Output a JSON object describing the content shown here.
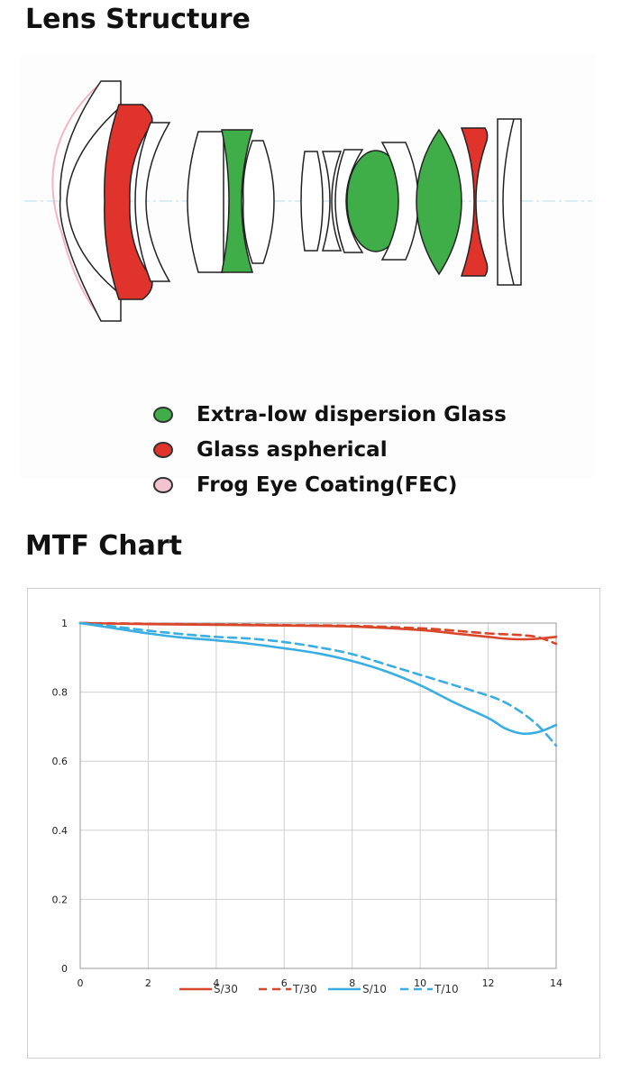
{
  "lens_section": {
    "title": "Lens Structure",
    "legend": [
      {
        "label": "Extra-low dispersion Glass",
        "color": "#3fae49"
      },
      {
        "label": "Glass aspherical",
        "color": "#e0332b"
      },
      {
        "label": "Frog Eye Coating(FEC)",
        "color": "#f3c3cf"
      }
    ]
  },
  "mtf_section": {
    "title": "MTF Chart"
  },
  "chart_data": {
    "type": "line",
    "title": "",
    "xlabel": "",
    "ylabel": "",
    "xlim": [
      0,
      14
    ],
    "ylim": [
      0,
      1
    ],
    "x_ticks": [
      0,
      2,
      4,
      6,
      8,
      10,
      12,
      14
    ],
    "y_ticks": [
      0,
      0.2,
      0.4,
      0.6,
      0.8,
      1
    ],
    "y_tick_labels": [
      "0",
      "0.2",
      "0.4",
      "0.6",
      "0.8",
      "1"
    ],
    "grid": true,
    "legend_position": "bottom",
    "series": [
      {
        "name": "S/30",
        "color": "#d9472b",
        "dash": false,
        "x": [
          0,
          2,
          4,
          6,
          8,
          10,
          11,
          12,
          12.5,
          13,
          13.5,
          14
        ],
        "y": [
          1.0,
          0.997,
          0.995,
          0.993,
          0.99,
          0.98,
          0.97,
          0.96,
          0.955,
          0.953,
          0.955,
          0.96
        ]
      },
      {
        "name": "T/30",
        "color": "#d9472b",
        "dash": true,
        "x": [
          0,
          2,
          4,
          6,
          8,
          10,
          11,
          12,
          13,
          13.5,
          14
        ],
        "y": [
          1.0,
          0.998,
          0.996,
          0.994,
          0.992,
          0.985,
          0.978,
          0.97,
          0.965,
          0.958,
          0.94
        ]
      },
      {
        "name": "S/10",
        "color": "#3aaee0",
        "dash": false,
        "x": [
          0,
          1,
          2,
          3,
          4,
          5,
          6,
          7,
          8,
          9,
          10,
          11,
          12,
          12.5,
          13,
          13.5,
          14
        ],
        "y": [
          1.0,
          0.985,
          0.97,
          0.958,
          0.95,
          0.94,
          0.927,
          0.912,
          0.89,
          0.86,
          0.82,
          0.77,
          0.725,
          0.695,
          0.68,
          0.685,
          0.705
        ]
      },
      {
        "name": "T/10",
        "color": "#3aaee0",
        "dash": true,
        "x": [
          0,
          1,
          2,
          3,
          4,
          5,
          6,
          7,
          8,
          9,
          10,
          11,
          12,
          12.5,
          13,
          13.5,
          14
        ],
        "y": [
          1.0,
          0.99,
          0.978,
          0.968,
          0.96,
          0.955,
          0.945,
          0.93,
          0.91,
          0.88,
          0.85,
          0.82,
          0.79,
          0.77,
          0.74,
          0.7,
          0.645
        ]
      }
    ]
  }
}
